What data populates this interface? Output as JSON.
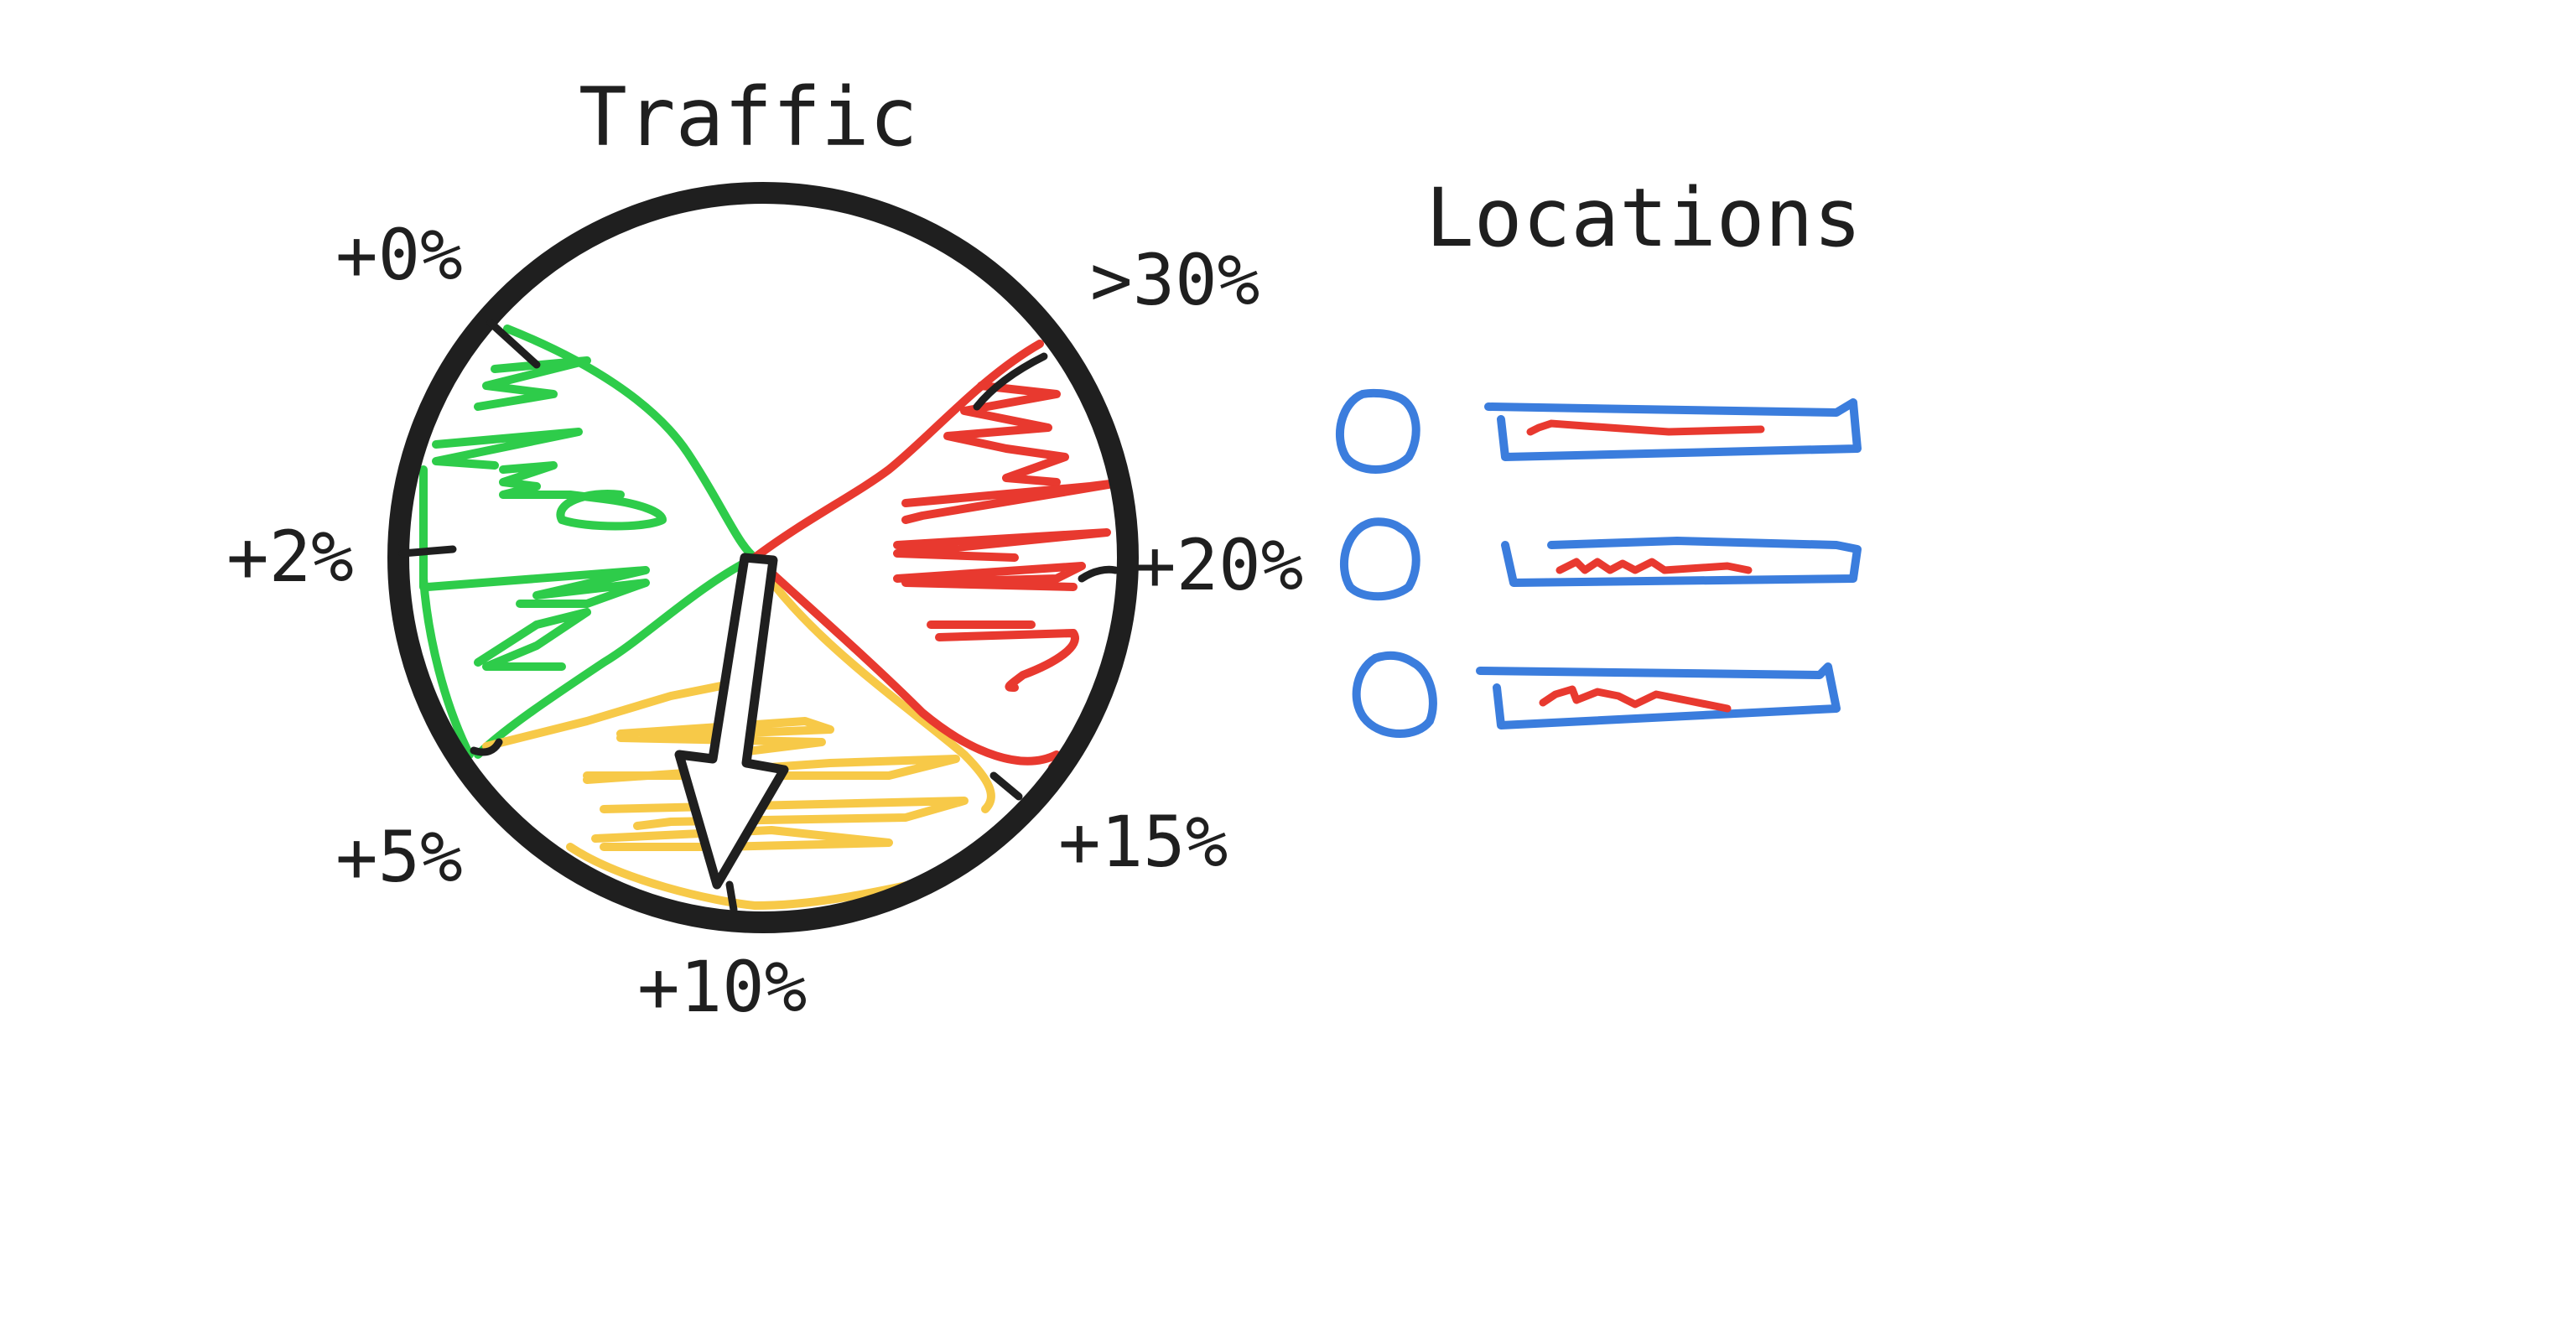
{
  "gauge": {
    "title": "Traffic",
    "scale_labels": [
      "+0%",
      "+2%",
      "+5%",
      "+10%",
      "+15%",
      "+20%",
      ">30%"
    ],
    "zones": [
      {
        "range": "+0% to +5%",
        "color": "#2ecc4a"
      },
      {
        "range": "+5% to +15%",
        "color": "#f7c948"
      },
      {
        "range": "+15% to >30%",
        "color": "#e8392f"
      }
    ],
    "needle": {
      "icon": "arrow-icon",
      "points_to": "+10%"
    }
  },
  "locations": {
    "title": "Locations",
    "items": [
      {
        "icon": "pin-circle-icon",
        "bar_color": "#3b7ddd",
        "scribble_color": "#e8392f"
      },
      {
        "icon": "pin-circle-icon",
        "bar_color": "#3b7ddd",
        "scribble_color": "#e8392f"
      },
      {
        "icon": "pin-circle-icon",
        "bar_color": "#3b7ddd",
        "scribble_color": "#e8392f"
      }
    ]
  },
  "colors": {
    "ink": "#1f1f1f",
    "green": "#2ecc4a",
    "yellow": "#f7c948",
    "red": "#e8392f",
    "blue": "#3b7ddd"
  }
}
